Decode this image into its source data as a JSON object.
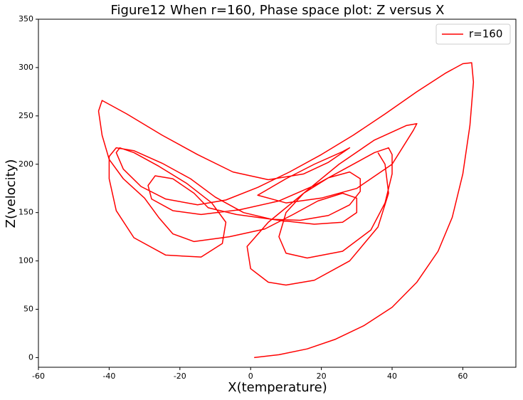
{
  "chart_data": {
    "type": "line",
    "title": "Figure12 When r=160, Phase space plot: Z versus X",
    "x_label": "X(temperature)",
    "y_label": "Z(velocity)",
    "legend": "upper right",
    "xlim": [
      -60,
      75
    ],
    "ylim": [
      -10,
      350
    ],
    "xticks": [
      -60,
      -40,
      -20,
      0,
      20,
      40,
      60
    ],
    "yticks": [
      0,
      50,
      100,
      150,
      200,
      250,
      300,
      350
    ],
    "x": [
      1,
      8,
      16,
      24,
      32,
      40,
      47,
      53,
      57,
      60,
      62,
      63,
      62.5,
      60,
      55,
      47,
      38,
      29,
      20,
      11,
      2,
      -7,
      -15,
      -24,
      -31,
      -36,
      -38,
      -37,
      -33,
      -26,
      -18,
      -11,
      -7,
      -8,
      -14,
      -24,
      -33,
      -38,
      -40,
      -40,
      -38,
      -33,
      -25,
      -17,
      -10,
      -2,
      6,
      14,
      22,
      28,
      31,
      31,
      28,
      22,
      15,
      10,
      8,
      10,
      16,
      26,
      34,
      38,
      40,
      40,
      39,
      35,
      27,
      18,
      8,
      -3,
      -14,
      -22,
      -28,
      -29,
      -27,
      -22,
      -16,
      -12,
      -4,
      8,
      18,
      26,
      30,
      30,
      26,
      19,
      12,
      4,
      -6,
      -16,
      -22,
      -26,
      -30,
      -36,
      -40,
      -42,
      -43,
      -42,
      -35,
      -25,
      -15,
      -5,
      5,
      15,
      22,
      28,
      26,
      18,
      10,
      2,
      10,
      20,
      30,
      40,
      46,
      47,
      44,
      35,
      25,
      15,
      5,
      -1,
      0,
      5,
      10,
      18,
      28,
      36,
      39,
      38,
      36
    ],
    "series": [
      {
        "name": "r=160",
        "color": "#ff0000",
        "values": [
          0,
          3,
          9,
          19,
          33,
          52,
          78,
          110,
          145,
          190,
          240,
          285,
          305,
          304,
          294,
          275,
          252,
          230,
          210,
          192,
          176,
          163,
          158,
          164,
          177,
          195,
          212,
          217,
          212,
          198,
          180,
          160,
          140,
          118,
          104,
          106,
          124,
          152,
          185,
          208,
          217,
          214,
          201,
          185,
          166,
          150,
          143,
          142,
          147,
          158,
          172,
          185,
          192,
          186,
          170,
          150,
          125,
          108,
          103,
          110,
          132,
          160,
          190,
          210,
          217,
          212,
          196,
          178,
          162,
          153,
          148,
          152,
          164,
          178,
          188,
          185,
          170,
          155,
          148,
          142,
          138,
          140,
          150,
          165,
          170,
          162,
          148,
          133,
          125,
          120,
          128,
          145,
          165,
          185,
          205,
          230,
          255,
          266,
          252,
          230,
          210,
          192,
          184,
          190,
          202,
          217,
          213,
          200,
          185,
          168,
          160,
          165,
          175,
          200,
          235,
          242,
          240,
          225,
          200,
          170,
          140,
          115,
          92,
          78,
          75,
          80,
          100,
          135,
          170,
          200,
          212
        ]
      }
    ]
  }
}
